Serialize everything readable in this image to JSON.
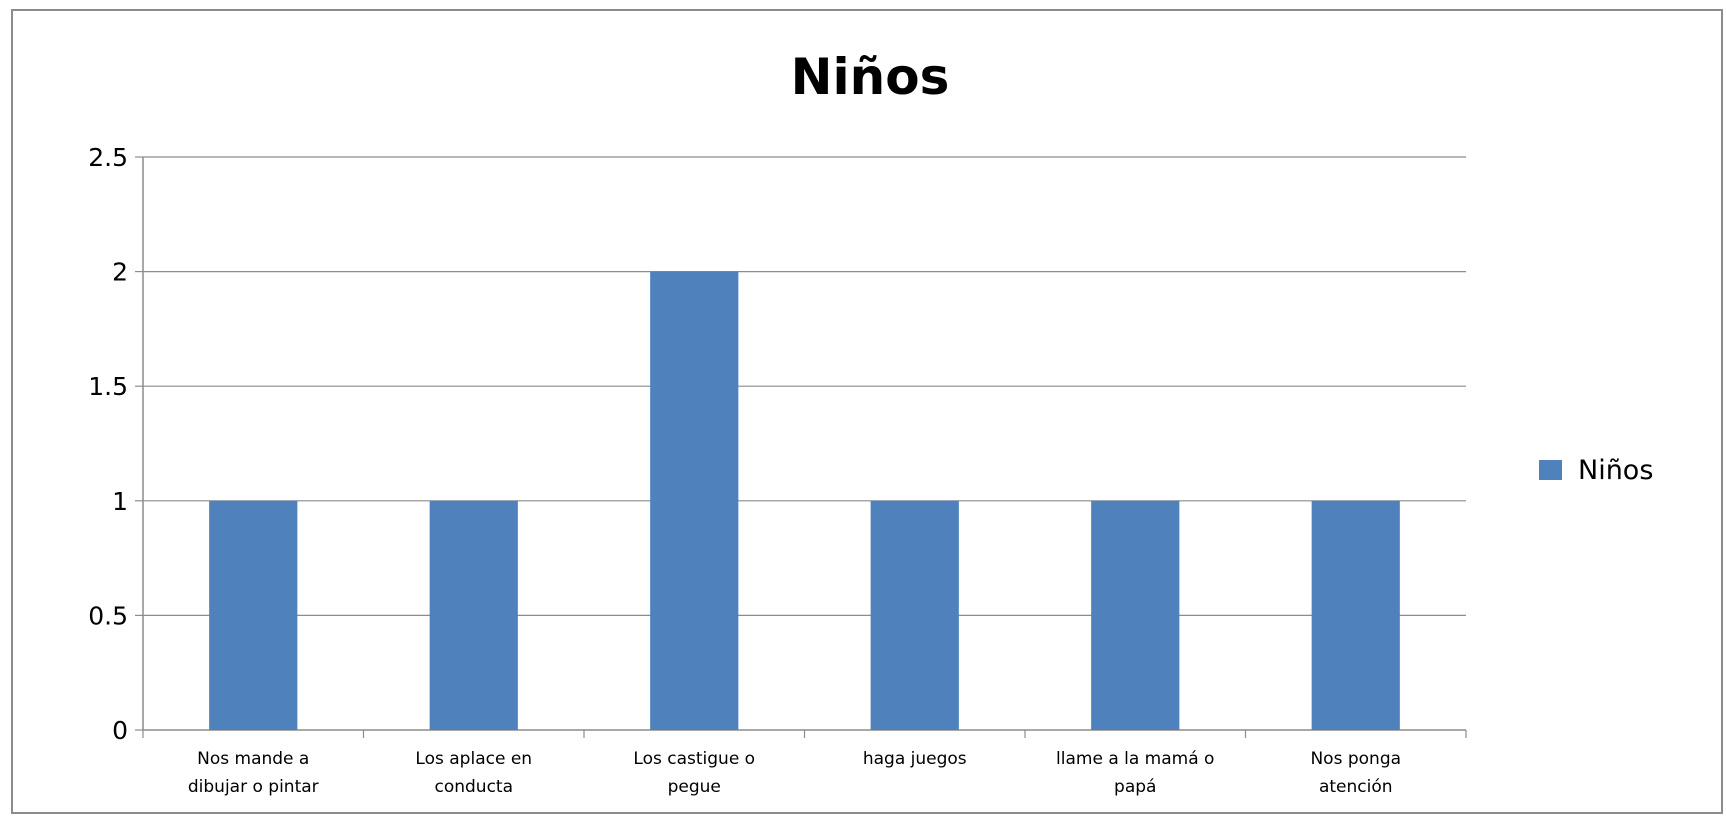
{
  "chart_data": {
    "type": "bar",
    "title": "Niños",
    "xlabel": "",
    "ylabel": "",
    "ylim": [
      0,
      2.5
    ],
    "yticks": [
      "0",
      "0.5",
      "1",
      "1.5",
      "2",
      "2.5"
    ],
    "categories": [
      [
        "Nos mande a",
        "dibujar o pintar"
      ],
      [
        "Los aplace en",
        "conducta"
      ],
      [
        "Los castigue o",
        "pegue"
      ],
      [
        "haga juegos"
      ],
      [
        "llame a la mamá o",
        "papá"
      ],
      [
        "Nos ponga",
        "atención"
      ]
    ],
    "series": [
      {
        "name": "Niños",
        "values": [
          1,
          1,
          2,
          1,
          1,
          1
        ],
        "color": "#4F81BD"
      }
    ],
    "grid": true,
    "legend": "right"
  }
}
